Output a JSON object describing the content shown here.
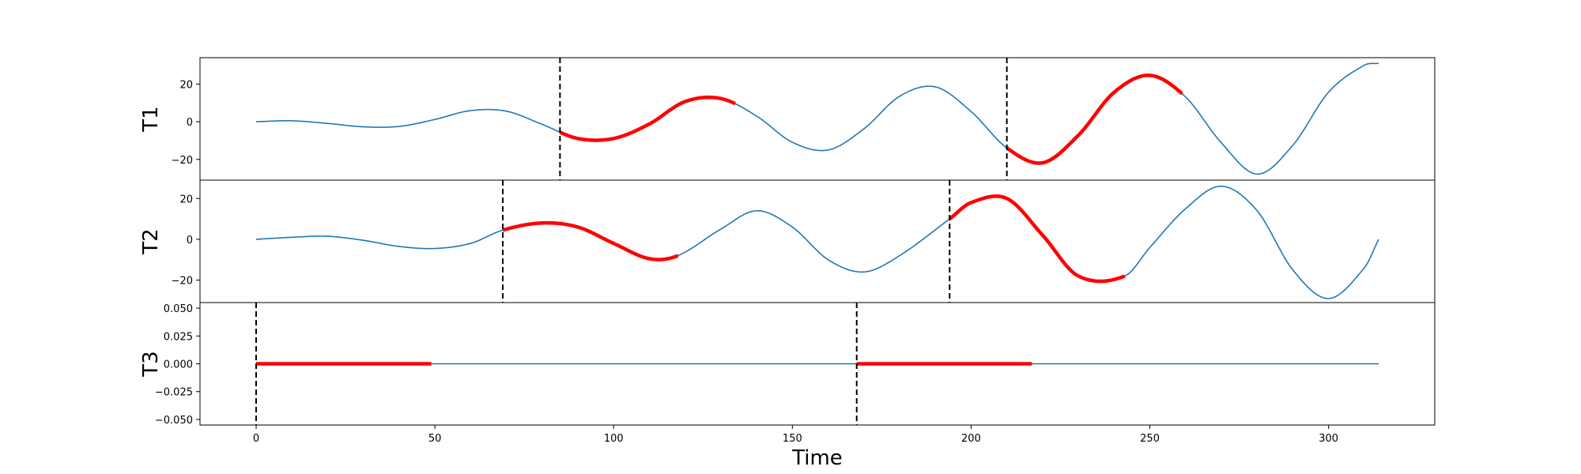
{
  "chart_data": {
    "type": "line",
    "xlabel": "Time",
    "xlim": [
      -15.7,
      329.7
    ],
    "xticks": [
      0,
      50,
      100,
      150,
      200,
      250,
      300
    ],
    "colors": {
      "series": "#1f77b4",
      "highlight": "#ff0000",
      "marker_line": "#000000"
    },
    "panels": [
      {
        "ylabel": "T1",
        "ylim": [
          -31,
          34
        ],
        "yticks": [
          -20,
          0,
          20
        ],
        "ytick_labels": [
          "−20",
          "0",
          "20"
        ],
        "series": {
          "x": [
            0,
            10,
            20,
            30,
            40,
            50,
            60,
            70,
            80,
            90,
            100,
            110,
            120,
            130,
            140,
            150,
            160,
            170,
            180,
            190,
            200,
            210,
            220,
            230,
            240,
            250,
            260,
            270,
            280,
            290,
            300,
            310,
            314
          ],
          "y": [
            0.0,
            0.5,
            -0.9,
            -2.7,
            -2.5,
            1.2,
            5.9,
            5.6,
            -1.4,
            -8.9,
            -8.9,
            -1.2,
            10.7,
            12.3,
            3.0,
            -10.9,
            -15.0,
            -3.8,
            13.5,
            18.5,
            5.4,
            -13.9,
            -21.8,
            -7.2,
            15.6,
            24.6,
            13.1,
            -11.2,
            -27.8,
            -12.5,
            15.7,
            30.0,
            31.0
          ]
        },
        "event_markers": [
          85,
          210
        ],
        "highlight_segments": [
          [
            85,
            134
          ],
          [
            210,
            259
          ]
        ]
      },
      {
        "ylabel": "T2",
        "ylim": [
          -31,
          29
        ],
        "yticks": [
          -20,
          0,
          20
        ],
        "ytick_labels": [
          "−20",
          "0",
          "20"
        ],
        "series": {
          "x": [
            0,
            10,
            20,
            30,
            40,
            50,
            60,
            69,
            80,
            90,
            100,
            110,
            118,
            130,
            140,
            150,
            160,
            170,
            180,
            194,
            200,
            210,
            220,
            230,
            243,
            250,
            260,
            270,
            280,
            290,
            300,
            310,
            314
          ],
          "y": [
            0.0,
            1.0,
            1.5,
            -0.5,
            -3.5,
            -4.5,
            -2.0,
            4.5,
            8.0,
            6.0,
            -2.0,
            -9.5,
            -8.0,
            5.0,
            14.0,
            6.0,
            -10.0,
            -16.0,
            -8.0,
            10.0,
            18.0,
            20.0,
            2.0,
            -18.0,
            -18.0,
            -4.0,
            15.0,
            26.0,
            14.0,
            -15.0,
            -29.0,
            -14.0,
            0.0
          ]
        },
        "event_markers": [
          69,
          194
        ],
        "highlight_segments": [
          [
            69,
            118
          ],
          [
            194,
            243
          ]
        ]
      },
      {
        "ylabel": "T3",
        "ylim": [
          -0.055,
          0.055
        ],
        "yticks": [
          -0.05,
          -0.025,
          0.0,
          0.025,
          0.05
        ],
        "ytick_labels": [
          "−0.050",
          "−0.025",
          "0.000",
          "0.025",
          "0.050"
        ],
        "series": {
          "x": [
            0,
            314
          ],
          "y": [
            0.0,
            0.0
          ]
        },
        "event_markers": [
          0,
          168
        ],
        "highlight_segments": [
          [
            0,
            49
          ],
          [
            168,
            217
          ]
        ]
      }
    ]
  }
}
